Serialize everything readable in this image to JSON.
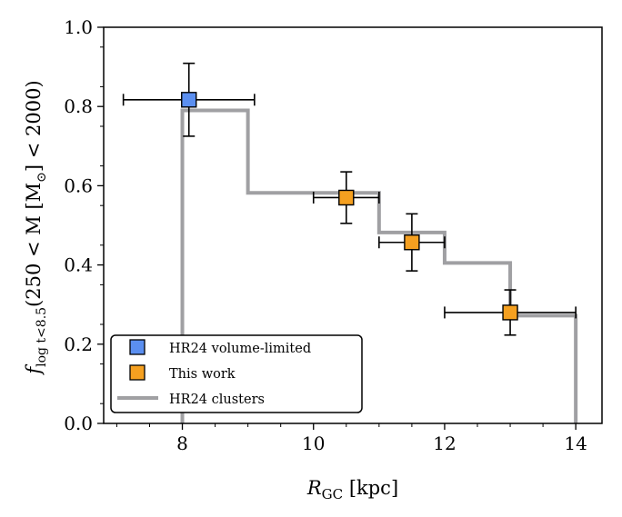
{
  "chart_data": {
    "type": "scatter",
    "xlabel": "R_GC [kpc]",
    "xlabel_main": "R",
    "xlabel_sub": "GC",
    "xlabel_unit": " [kpc]",
    "ylabel": "f_{log t<8.5}(250 < M [M_⊙] < 2000)",
    "ylabel_main": "f",
    "ylabel_sub": "log t<8.5",
    "ylabel_rest": "(250 < M [M",
    "ylabel_sub2": "⊙",
    "ylabel_end": "] < 2000)",
    "xlim": [
      6.8,
      14.4
    ],
    "ylim": [
      0.0,
      1.0
    ],
    "xticks": [
      8,
      10,
      12,
      14
    ],
    "xtick_labels": [
      "8",
      "10",
      "12",
      "14"
    ],
    "yticks": [
      0.0,
      0.2,
      0.4,
      0.6,
      0.8,
      1.0
    ],
    "ytick_labels": [
      "0.0",
      "0.2",
      "0.4",
      "0.6",
      "0.8",
      "1.0"
    ],
    "grid": false,
    "legend_position": "lower-left",
    "series": [
      {
        "name": "HR24 volume-limited",
        "kind": "errorbar",
        "color": "#5b8ff0",
        "points": [
          {
            "x": 8.1,
            "y": 0.817,
            "xerr": [
              1.0,
              1.0
            ],
            "yerr": [
              0.092,
              0.092
            ]
          }
        ]
      },
      {
        "name": "This work",
        "kind": "errorbar",
        "color": "#f5a020",
        "points": [
          {
            "x": 10.5,
            "y": 0.57,
            "xerr": [
              0.5,
              0.5
            ],
            "yerr": [
              0.065,
              0.065
            ]
          },
          {
            "x": 11.5,
            "y": 0.457,
            "xerr": [
              0.5,
              0.5
            ],
            "yerr": [
              0.072,
              0.072
            ]
          },
          {
            "x": 13.0,
            "y": 0.28,
            "xerr": [
              1.0,
              1.0
            ],
            "yerr": [
              0.057,
              0.057
            ]
          }
        ]
      },
      {
        "name": "HR24 clusters",
        "kind": "step",
        "color": "#a0a0a3",
        "bins": [
          {
            "x0": 8,
            "x1": 9,
            "y": 0.79
          },
          {
            "x0": 9,
            "x1": 11,
            "y": 0.582
          },
          {
            "x0": 11,
            "x1": 12,
            "y": 0.482
          },
          {
            "x0": 12,
            "x1": 13,
            "y": 0.405
          },
          {
            "x0": 13,
            "x1": 14,
            "y": 0.272
          }
        ]
      }
    ]
  }
}
